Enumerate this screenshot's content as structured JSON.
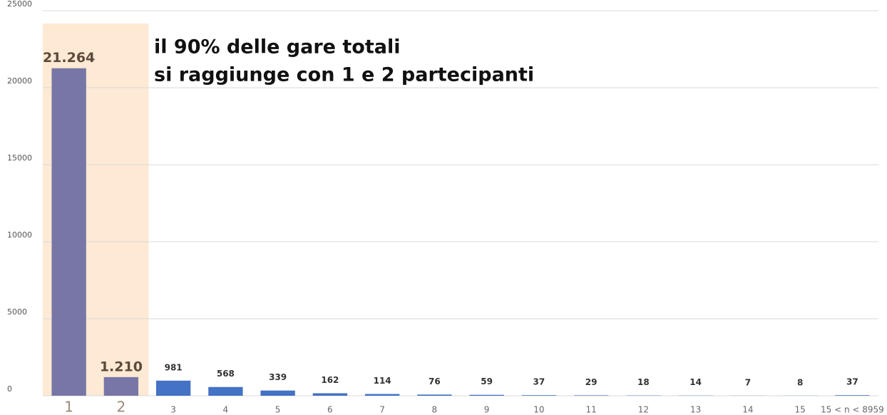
{
  "chart_data": {
    "type": "bar",
    "annotation": [
      "il 90% delle gare totali",
      "si raggiunge con 1 e 2 partecipanti"
    ],
    "categories": [
      "1",
      "2",
      "3",
      "4",
      "5",
      "6",
      "7",
      "8",
      "9",
      "10",
      "11",
      "12",
      "13",
      "14",
      "15",
      "15 < n < 8959"
    ],
    "values": [
      21264,
      1210,
      981,
      568,
      339,
      162,
      114,
      76,
      59,
      37,
      29,
      18,
      14,
      7,
      8,
      37
    ],
    "value_labels": [
      "21.264",
      "1.210",
      "981",
      "568",
      "339",
      "162",
      "114",
      "76",
      "59",
      "37",
      "29",
      "18",
      "14",
      "7",
      "8",
      "37"
    ],
    "color": "#4472c4",
    "highlight": {
      "indices": [
        0,
        1
      ],
      "color": "#7776a6",
      "background": "#fde9d4"
    },
    "ylim": [
      0,
      25000
    ],
    "yticks": [
      0,
      5000,
      10000,
      15000,
      20000,
      25000
    ],
    "grid": true
  }
}
